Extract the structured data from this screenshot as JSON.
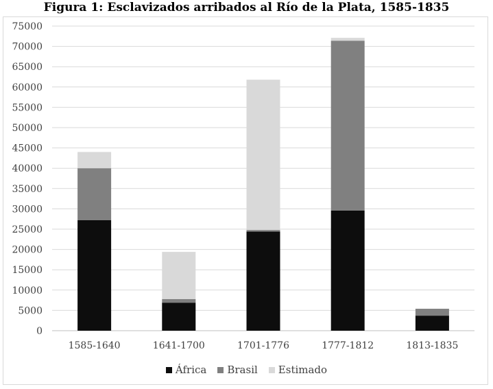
{
  "chart_data": {
    "type": "bar",
    "stacked": true,
    "title": "Figura 1: Esclavizados arribados al Río de la Plata, 1585-1835",
    "categories": [
      "1585-1640",
      "1641-1700",
      "1701-1776",
      "1777-1812",
      "1813-1835"
    ],
    "series": [
      {
        "name": "África",
        "color": "#0d0d0d",
        "values": [
          27200,
          6900,
          24400,
          29600,
          3700
        ]
      },
      {
        "name": "Brasil",
        "color": "#808080",
        "values": [
          12800,
          900,
          400,
          41800,
          1700
        ]
      },
      {
        "name": "Estimado",
        "color": "#d9d9d9",
        "values": [
          4000,
          11600,
          37000,
          700,
          0
        ]
      }
    ],
    "y_ticks": [
      "0",
      "5000",
      "10000",
      "15000",
      "20000",
      "25000",
      "30000",
      "35000",
      "40000",
      "45000",
      "50000",
      "55000",
      "60000",
      "65000",
      "70000",
      "75000"
    ],
    "ylim": [
      0,
      75000
    ],
    "ytick_step": 5000,
    "grid": true,
    "legend_position": "bottom",
    "xlabel": "",
    "ylabel": ""
  }
}
